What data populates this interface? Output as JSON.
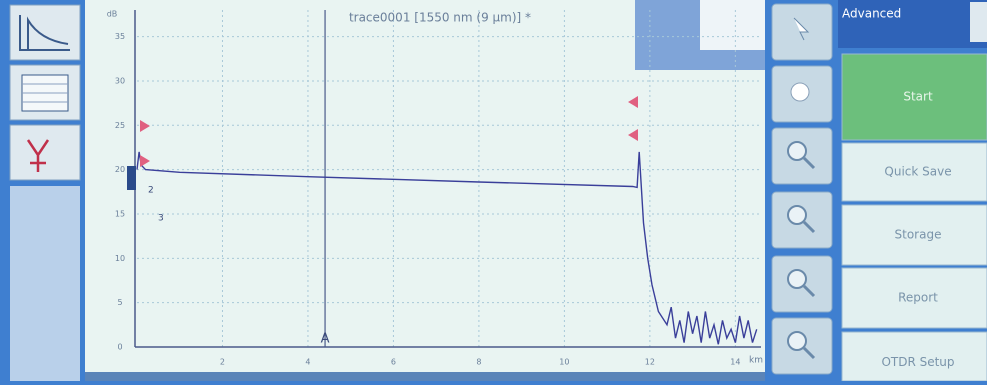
{
  "chart_data": {
    "type": "line",
    "title": "trace0001 [1550 nm (9 µm)] *",
    "y_unit": "dB",
    "x_unit": "km",
    "x": [
      0,
      0.05,
      0.1,
      0.2,
      1,
      4,
      8,
      11.6,
      11.7,
      11.75,
      11.85,
      11.95,
      12.05,
      12.2,
      12.4,
      12.5,
      12.6,
      12.7,
      12.8,
      12.9,
      13.0,
      13.1,
      13.2,
      13.3,
      13.4,
      13.5,
      13.6,
      13.7,
      13.8,
      13.9,
      14.0,
      14.1,
      14.2,
      14.3,
      14.4,
      14.5
    ],
    "series": [
      {
        "color": "#3a3f9a",
        "values": [
          20,
          22,
          20.5,
          20,
          19.7,
          19.2,
          18.6,
          18.1,
          18.0,
          22,
          14,
          10,
          7,
          4,
          2.5,
          4.5,
          1,
          3,
          0.5,
          4,
          1.5,
          3.5,
          0.5,
          4,
          1,
          2.5,
          0.3,
          3,
          1,
          2,
          0.5,
          3.5,
          1,
          3,
          0.5,
          2
        ]
      }
    ],
    "xlim": [
      0,
      14.6
    ],
    "ylim": [
      0,
      38
    ],
    "xticks": [
      2,
      4,
      6,
      8,
      10,
      12,
      14
    ],
    "yticks": [
      0,
      5,
      10,
      15,
      20,
      25,
      30,
      35
    ],
    "grid": true,
    "cursor": {
      "label": "A",
      "x": 4.4
    },
    "event_labels": [
      "2",
      "3"
    ]
  },
  "menu": {
    "tab": "Advanced",
    "buttons": [
      "Start",
      "Quick Save",
      "Storage",
      "Report",
      "OTDR Setup"
    ]
  }
}
